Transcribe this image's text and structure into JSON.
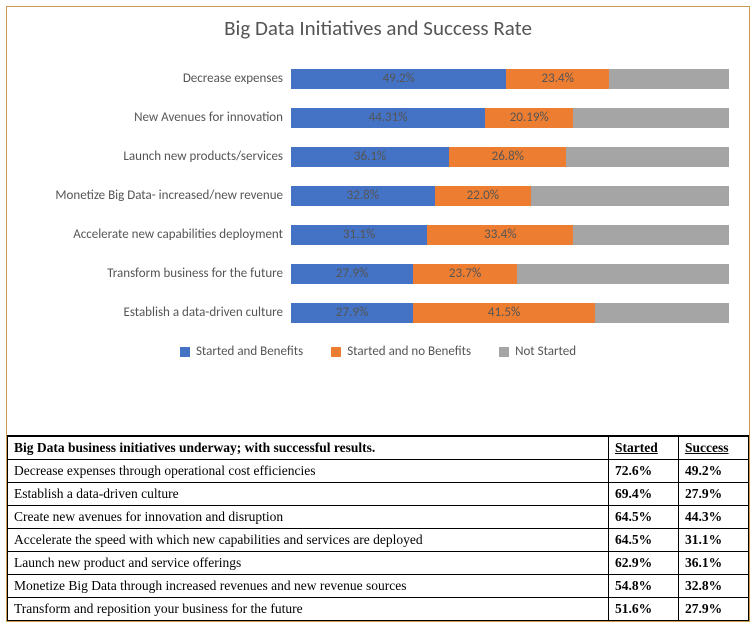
{
  "chart": {
    "title": "Big Data Initiatives and Success Rate",
    "colors": {
      "started_benefits": "#4472c4",
      "started_no_benefits": "#ed7d31",
      "not_started": "#a5a5a5",
      "text": "#555555"
    },
    "xmax": 100,
    "bars": [
      {
        "label": "Decrease expenses",
        "a": 49.2,
        "b": 23.4,
        "a_text": "49.2%",
        "b_text": "23.4%"
      },
      {
        "label": "New Avenues for innovation",
        "a": 44.31,
        "b": 20.19,
        "a_text": "44.31%",
        "b_text": "20.19%"
      },
      {
        "label": "Launch new products/services",
        "a": 36.1,
        "b": 26.8,
        "a_text": "36.1%",
        "b_text": "26.8%"
      },
      {
        "label": "Monetize Big Data- increased/new revenue",
        "a": 32.8,
        "b": 22.0,
        "a_text": "32.8%",
        "b_text": "22.0%"
      },
      {
        "label": "Accelerate new capabilities deployment",
        "a": 31.1,
        "b": 33.4,
        "a_text": "31.1%",
        "b_text": "33.4%"
      },
      {
        "label": "Transform business for the future",
        "a": 27.9,
        "b": 23.7,
        "a_text": "27.9%",
        "b_text": "23.7%"
      },
      {
        "label": "Establish a data-driven culture",
        "a": 27.9,
        "b": 41.5,
        "a_text": "27.9%",
        "b_text": "41.5%"
      }
    ],
    "legend": [
      {
        "label": "Started and Benefits",
        "key": "started_benefits"
      },
      {
        "label": "Started and no Benefits",
        "key": "started_no_benefits"
      },
      {
        "label": "Not Started",
        "key": "not_started"
      }
    ]
  },
  "table": {
    "header_left": "Big Data business initiatives underway; with successful results.",
    "header_started": "Started",
    "header_success": "Success",
    "rows": [
      {
        "name": "Decrease expenses through operational cost efficiencies",
        "started": "72.6%",
        "success": "49.2%"
      },
      {
        "name": "Establish a data-driven culture",
        "started": "69.4%",
        "success": "27.9%"
      },
      {
        "name": "Create new avenues for innovation and disruption",
        "started": "64.5%",
        "success": "44.3%"
      },
      {
        "name": "Accelerate the speed with which new capabilities and services are deployed",
        "started": "64.5%",
        "success": "31.1%"
      },
      {
        "name": "Launch new product and service offerings",
        "started": "62.9%",
        "success": "36.1%"
      },
      {
        "name": "Monetize Big Data through increased revenues and new revenue sources",
        "started": "54.8%",
        "success": "32.8%"
      },
      {
        "name": "Transform and reposition your business for the future",
        "started": "51.6%",
        "success": "27.9%"
      }
    ]
  }
}
